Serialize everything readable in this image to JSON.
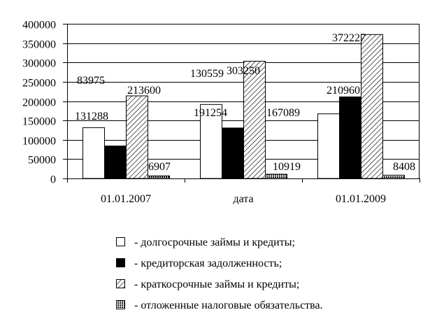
{
  "chart_data": {
    "type": "bar",
    "categories": [
      "01.01.2007",
      "дата",
      "01.01.2009"
    ],
    "series": [
      {
        "name": "- долгосрочные займы и кредиты;",
        "pattern": "white",
        "values": [
          131288,
          191254,
          167089
        ]
      },
      {
        "name": "- кредиторская задолженность;",
        "pattern": "black",
        "values": [
          83975,
          130559,
          210960
        ]
      },
      {
        "name": "- краткосрочные займы и кредиты;",
        "pattern": "diagonal-hatch",
        "values": [
          213600,
          303250,
          372227
        ]
      },
      {
        "name": "- отложенные налоговые обязательства.",
        "pattern": "dense-dots",
        "values": [
          6907,
          10919,
          8408
        ]
      }
    ],
    "ylim": [
      0,
      400000
    ],
    "yticks": [
      0,
      50000,
      100000,
      150000,
      200000,
      250000,
      300000,
      350000,
      400000
    ],
    "grid": true,
    "legend_position": "bottom",
    "title": "",
    "xlabel": "",
    "ylabel": ""
  }
}
